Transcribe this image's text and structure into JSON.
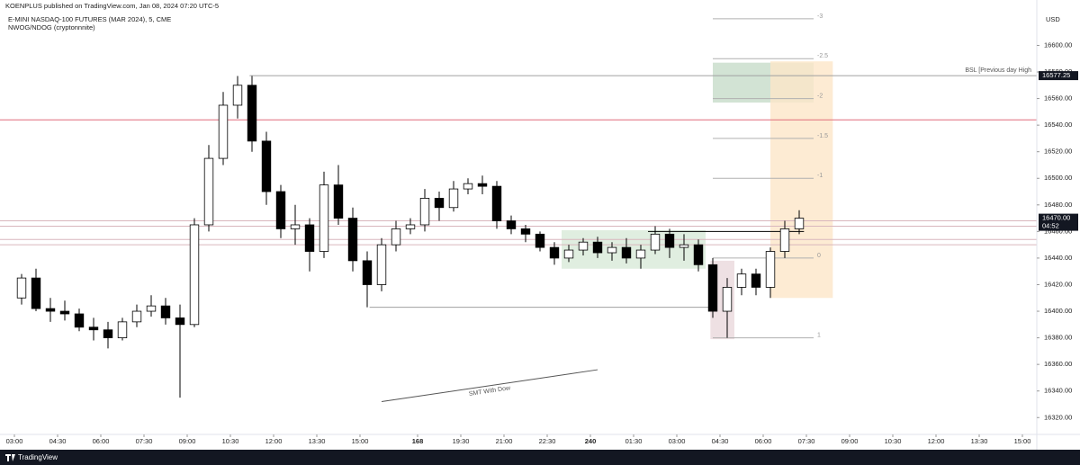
{
  "publisher": "KOENPLUS published on TradingView.com, Jan 08, 2024 07:20 UTC-5",
  "brand": "TradingView",
  "chart_data": {
    "type": "candlestick",
    "title": "E-MINI NASDAQ-100 FUTURES (MAR 2024), 5, CME",
    "subtitle": "NWOG/NDOG (cryptonnnite)",
    "currency": "USD",
    "up_color": "#ffffff",
    "down_color": "#000000",
    "edge_color": "#000000",
    "x": [
      3,
      9,
      15,
      21,
      27,
      33,
      39,
      45,
      51,
      57,
      63,
      69,
      75,
      81,
      87,
      93,
      99,
      105,
      111,
      117,
      123,
      129,
      135,
      141,
      147,
      153,
      159,
      165,
      171,
      177,
      183,
      189,
      195,
      201,
      207,
      213,
      219,
      225,
      231,
      237,
      243,
      249,
      255,
      261,
      267,
      273,
      279,
      285,
      291,
      297,
      303,
      309,
      315,
      321,
      327
    ],
    "open": [
      16410,
      16425,
      16402,
      16400,
      16398,
      16388,
      16386,
      16380,
      16392,
      16400,
      16404,
      16395,
      16390,
      16465,
      16515,
      16555,
      16570,
      16528,
      16490,
      16462,
      16465,
      16445,
      16495,
      16470,
      16438,
      16420,
      16450,
      16462,
      16465,
      16485,
      16478,
      16492,
      16496,
      16494,
      16468,
      16462,
      16458,
      16448,
      16440,
      16446,
      16452,
      16444,
      16448,
      16440,
      16446,
      16458,
      16448,
      16450,
      16435,
      16400,
      16418,
      16428,
      16418,
      16445,
      16462
    ],
    "high": [
      16428,
      16432,
      16410,
      16408,
      16402,
      16395,
      16392,
      16395,
      16405,
      16412,
      16410,
      16405,
      16470,
      16525,
      16565,
      16577,
      16577,
      16535,
      16495,
      16480,
      16470,
      16505,
      16510,
      16478,
      16445,
      16455,
      16468,
      16470,
      16492,
      16490,
      16498,
      16500,
      16502,
      16498,
      16472,
      16465,
      16460,
      16452,
      16450,
      16455,
      16456,
      16452,
      16455,
      16450,
      16464,
      16462,
      16458,
      16454,
      16440,
      16425,
      16432,
      16432,
      16448,
      16468,
      16476
    ],
    "low": [
      16405,
      16400,
      16392,
      16393,
      16385,
      16378,
      16372,
      16378,
      16388,
      16396,
      16390,
      16335,
      16388,
      16460,
      16510,
      16545,
      16520,
      16480,
      16455,
      16450,
      16430,
      16440,
      16465,
      16430,
      16403,
      16415,
      16445,
      16458,
      16460,
      16468,
      16475,
      16488,
      16488,
      16462,
      16458,
      16452,
      16445,
      16435,
      16437,
      16442,
      16440,
      16438,
      16436,
      16432,
      16443,
      16440,
      16438,
      16430,
      16395,
      16380,
      16412,
      16412,
      16410,
      16440,
      16458
    ],
    "close": [
      16425,
      16402,
      16400,
      16398,
      16388,
      16386,
      16380,
      16392,
      16400,
      16404,
      16395,
      16390,
      16465,
      16515,
      16555,
      16570,
      16528,
      16490,
      16462,
      16465,
      16445,
      16495,
      16470,
      16438,
      16420,
      16450,
      16462,
      16465,
      16485,
      16478,
      16492,
      16496,
      16494,
      16468,
      16462,
      16458,
      16448,
      16440,
      16446,
      16452,
      16444,
      16448,
      16440,
      16446,
      16458,
      16448,
      16450,
      16435,
      16400,
      16418,
      16428,
      16418,
      16445,
      16462,
      16470
    ],
    "xlim": [
      -6,
      426
    ],
    "xticks": [
      {
        "value": 0,
        "label": "03:00"
      },
      {
        "value": 18,
        "label": "04:30"
      },
      {
        "value": 36,
        "label": "06:00"
      },
      {
        "value": 54,
        "label": "07:30"
      },
      {
        "value": 72,
        "label": "09:00"
      },
      {
        "value": 90,
        "label": "10:30"
      },
      {
        "value": 108,
        "label": "12:00"
      },
      {
        "value": 126,
        "label": "13:30"
      },
      {
        "value": 144,
        "label": "15:00"
      },
      168,
      {
        "value": 186,
        "label": "19:30"
      },
      {
        "value": 204,
        "label": "21:00"
      },
      {
        "value": 222,
        "label": "22:30"
      },
      240,
      {
        "value": 258,
        "label": "01:30"
      },
      {
        "value": 276,
        "label": "03:00"
      },
      {
        "value": 294,
        "label": "04:30"
      },
      {
        "value": 312,
        "label": "06:00"
      },
      {
        "value": 330,
        "label": "07:30"
      },
      {
        "value": 348,
        "label": "09:00"
      },
      {
        "value": 366,
        "label": "10:30"
      },
      {
        "value": 384,
        "label": "12:00"
      },
      {
        "value": 402,
        "label": "13:30"
      },
      {
        "value": 420,
        "label": "15:00"
      }
    ],
    "ylim": [
      16308,
      16624
    ],
    "yticks": [
      {
        "value": 16320,
        "label": "16320.00"
      },
      {
        "value": 16340,
        "label": "16340.00"
      },
      {
        "value": 16360,
        "label": "16360.00"
      },
      {
        "value": 16380,
        "label": "16380.00"
      },
      {
        "value": 16400,
        "label": "16400.00"
      },
      {
        "value": 16420,
        "label": "16420.00"
      },
      {
        "value": 16440,
        "label": "16440.00"
      },
      {
        "value": 16460,
        "label": "16460.00"
      },
      {
        "value": 16480,
        "label": "16480.00"
      },
      {
        "value": 16500,
        "label": "16500.00"
      },
      {
        "value": 16520,
        "label": "16520.00"
      },
      {
        "value": 16540,
        "label": "16540.00"
      },
      {
        "value": 16560,
        "label": "16560.00"
      },
      {
        "value": 16580,
        "label": "16580.00"
      },
      {
        "value": 16600,
        "label": "16600.00"
      }
    ],
    "levels": [
      {
        "price": 16544,
        "color": "#e06c7a"
      },
      {
        "price": 16468,
        "color": "#d9b6bd"
      },
      {
        "price": 16464,
        "color": "#d9b6bd"
      },
      {
        "price": 16454,
        "color": "#d9b6bd"
      },
      {
        "price": 16450,
        "color": "#d9b6bd"
      },
      {
        "price": 16577.25,
        "x": [
          98,
          426
        ],
        "color": "#a0a0a0",
        "label": "BSL [Previous day High"
      },
      {
        "price": 16403,
        "x": [
          148,
          291
        ],
        "color": "#a0a0a0"
      },
      {
        "price": 16460,
        "x": [
          264,
          329
        ],
        "color": "#000000"
      }
    ],
    "zones": [
      {
        "x": [
          291,
          333
        ],
        "top": 16587,
        "bottom": 16557,
        "color": "#c7dcc9"
      },
      {
        "x": [
          315,
          341
        ],
        "top": 16588,
        "bottom": 16410,
        "color": "#fde6c8"
      },
      {
        "x": [
          228,
          288
        ],
        "top": 16461,
        "bottom": 16432,
        "color": "#d8ead8"
      },
      {
        "x": [
          290,
          300
        ],
        "top": 16438,
        "bottom": 16379,
        "color": "#ead8dc"
      }
    ],
    "fib": {
      "x": [
        291,
        333
      ],
      "color": "#b0b0b0",
      "levels": [
        {
          "level": -3,
          "price": 16620
        },
        {
          "level": -2.5,
          "price": 16590
        },
        {
          "level": -2,
          "price": 16560
        },
        {
          "level": -1.5,
          "price": 16530
        },
        {
          "level": -1,
          "price": 16500
        },
        {
          "level": 0,
          "price": 16440
        },
        {
          "level": 1,
          "price": 16380
        }
      ]
    },
    "trendline": {
      "x": [
        153,
        243
      ],
      "y": [
        16332,
        16356
      ],
      "label": "SMT With Dow",
      "color": "#555555"
    },
    "last_price": {
      "value": 16470,
      "label": "16470.00"
    },
    "countdown": "04:52",
    "high_label": 16577.25
  }
}
